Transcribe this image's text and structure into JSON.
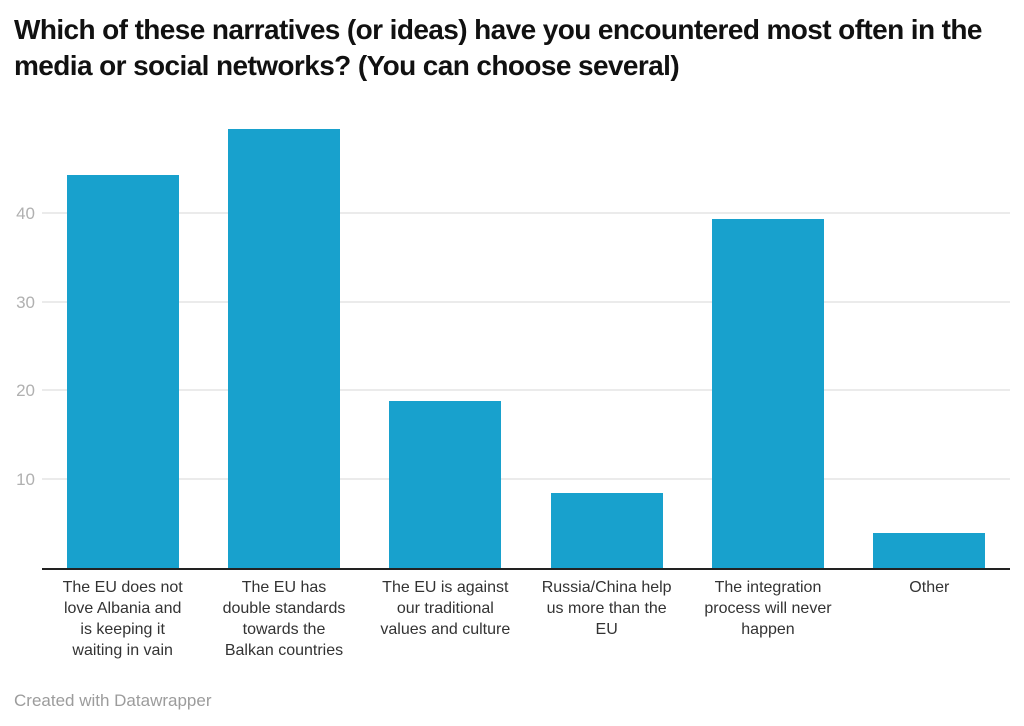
{
  "header": {
    "title": "Which of these narratives (or ideas) have you encountered most often in the media or social networks? (You can choose several)"
  },
  "chart_data": {
    "type": "bar",
    "title": "Which of these narratives (or ideas) have you encountered most often in the media or social networks? (You can choose several)",
    "categories": [
      "The EU does not love Albania and is keeping it waiting in vain",
      "The EU has double standards towards the Balkan countries",
      "The EU is against our traditional values and culture",
      "Russia/China help us more than the EU",
      "The integration process will never happen",
      "Other"
    ],
    "categories_wrapped": [
      "The EU does not\nlove Albania and\nis keeping it\nwaiting in vain",
      "The EU has\ndouble standards\ntowards the\nBalkan countries",
      "The EU is against\nour traditional\nvalues and culture",
      "Russia/China help\nus more than the\nEU",
      "The integration\nprocess will never\nhappen",
      "Other"
    ],
    "values": [
      44.4,
      49.6,
      18.9,
      8.5,
      39.4,
      4
    ],
    "xlabel": "",
    "ylabel": "",
    "ylim": [
      0,
      52
    ],
    "yticks": [
      10,
      20,
      30,
      40
    ],
    "grid": true,
    "legend": "none",
    "bar_color": "#18a1cd"
  },
  "colors": {
    "bar": "#18a1cd",
    "grid": "#ebebeb",
    "axis_line": "#222222",
    "y_tick_label": "#b0b0b0",
    "x_tick_label": "#333333",
    "title": "#111111",
    "footer": "#9c9c9c",
    "background": "#ffffff"
  },
  "footer": {
    "credit": "Created with Datawrapper"
  }
}
